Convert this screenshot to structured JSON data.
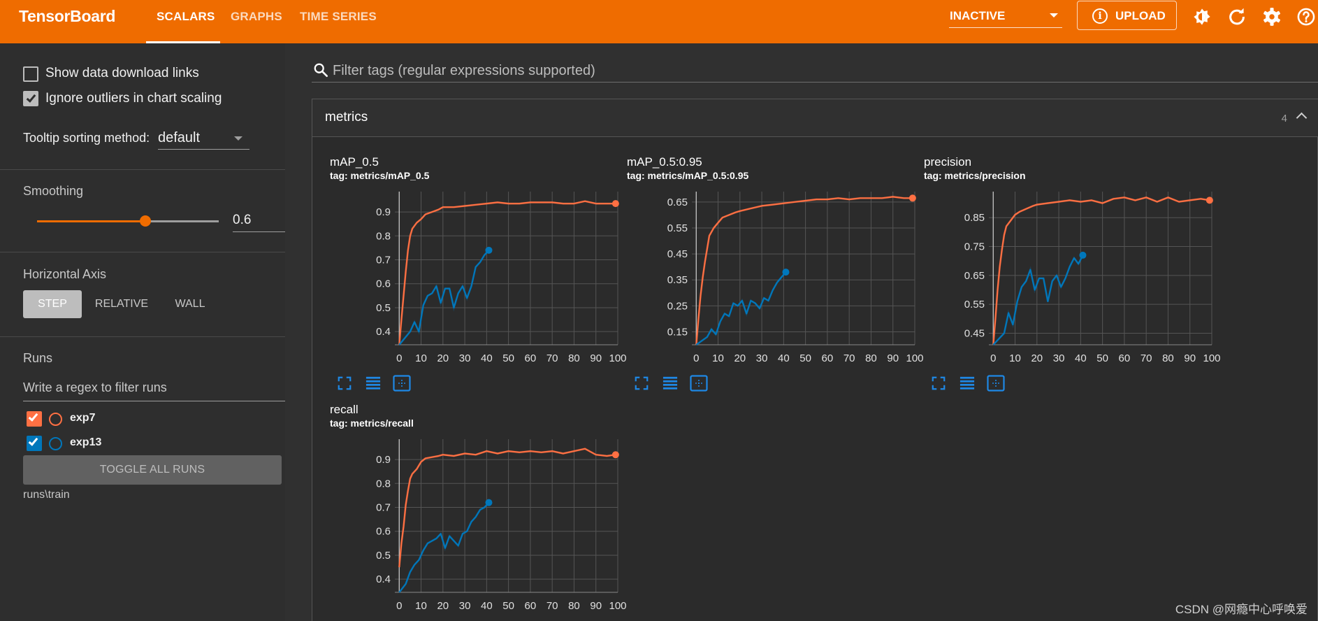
{
  "app": {
    "brand": "TensorBoard",
    "tabs": [
      {
        "label": "SCALARS",
        "active": true
      },
      {
        "label": "GRAPHS",
        "active": false
      },
      {
        "label": "TIME SERIES",
        "active": false
      }
    ],
    "status_select": "INACTIVE",
    "upload_label": "UPLOAD",
    "toolbar_icons": [
      "brightness-icon",
      "refresh-icon",
      "settings-icon",
      "help-icon"
    ],
    "accent_color": "#ef6c00"
  },
  "sidebar": {
    "show_download_links": {
      "label": "Show data download links",
      "checked": false
    },
    "ignore_outliers": {
      "label": "Ignore outliers in chart scaling",
      "checked": true
    },
    "tooltip_sorting": {
      "label": "Tooltip sorting method:",
      "value": "default"
    },
    "smoothing": {
      "label": "Smoothing",
      "value": "0.6",
      "fraction": 0.6
    },
    "horizontal_axis": {
      "label": "Horizontal Axis",
      "options": [
        "STEP",
        "RELATIVE",
        "WALL"
      ],
      "selected": "STEP"
    },
    "runs": {
      "label": "Runs",
      "filter_placeholder": "Write a regex to filter runs",
      "items": [
        {
          "name": "exp7",
          "color": "#ff7043",
          "checked": true
        },
        {
          "name": "exp13",
          "color": "#0077bb",
          "checked": true
        }
      ],
      "toggle_label": "TOGGLE ALL RUNS",
      "log_dir": "runs\\train"
    }
  },
  "main": {
    "filter_placeholder": "Filter tags (regular expressions supported)",
    "card": {
      "title": "metrics",
      "count": "4"
    }
  },
  "watermark": "CSDN @网瘾中心呼唤爱",
  "chart_data": [
    {
      "type": "line",
      "title": "mAP_0.5",
      "subtitle": "tag: metrics/mAP_0.5",
      "xlim": [
        -2,
        100
      ],
      "ylim": [
        0.345,
        0.985
      ],
      "xticks": [
        "0",
        "10",
        "20",
        "30",
        "40",
        "50",
        "60",
        "70",
        "80",
        "90",
        "100"
      ],
      "yticks": [
        "0.4",
        "0.5",
        "0.6",
        "0.7",
        "0.8",
        "0.9"
      ],
      "series": [
        {
          "name": "exp7",
          "color": "#ff7043",
          "x": [
            0,
            1,
            2,
            3,
            4,
            5,
            6,
            8,
            10,
            12,
            15,
            18,
            20,
            25,
            30,
            35,
            40,
            45,
            50,
            55,
            60,
            65,
            70,
            75,
            80,
            85,
            90,
            95,
            99
          ],
          "y": [
            0.345,
            0.45,
            0.55,
            0.65,
            0.74,
            0.8,
            0.83,
            0.855,
            0.87,
            0.89,
            0.9,
            0.91,
            0.92,
            0.92,
            0.925,
            0.93,
            0.935,
            0.94,
            0.935,
            0.935,
            0.94,
            0.94,
            0.94,
            0.935,
            0.935,
            0.945,
            0.935,
            0.935,
            0.935
          ]
        },
        {
          "name": "exp13",
          "color": "#0077bb",
          "x": [
            0,
            5,
            7,
            9,
            11,
            13,
            15,
            17,
            19,
            21,
            23,
            25,
            27,
            29,
            31,
            33,
            35,
            37,
            39,
            41
          ],
          "y": [
            0.345,
            0.4,
            0.44,
            0.4,
            0.51,
            0.55,
            0.56,
            0.59,
            0.52,
            0.58,
            0.58,
            0.5,
            0.56,
            0.59,
            0.54,
            0.59,
            0.67,
            0.69,
            0.72,
            0.74
          ]
        }
      ]
    },
    {
      "type": "line",
      "title": "mAP_0.5:0.95",
      "subtitle": "tag: metrics/mAP_0.5:0.95",
      "xlim": [
        -2,
        100
      ],
      "ylim": [
        0.1,
        0.69
      ],
      "xticks": [
        "0",
        "10",
        "20",
        "30",
        "40",
        "50",
        "60",
        "70",
        "80",
        "90",
        "100"
      ],
      "yticks": [
        "0.15",
        "0.25",
        "0.35",
        "0.45",
        "0.55",
        "0.65"
      ],
      "series": [
        {
          "name": "exp7",
          "color": "#ff7043",
          "x": [
            0,
            1,
            2,
            3,
            4,
            5,
            6,
            8,
            10,
            12,
            15,
            18,
            20,
            25,
            30,
            35,
            40,
            45,
            50,
            55,
            60,
            65,
            70,
            75,
            80,
            85,
            90,
            95,
            99
          ],
          "y": [
            0.1,
            0.2,
            0.29,
            0.36,
            0.42,
            0.47,
            0.52,
            0.55,
            0.57,
            0.59,
            0.6,
            0.61,
            0.615,
            0.625,
            0.635,
            0.64,
            0.645,
            0.65,
            0.655,
            0.66,
            0.66,
            0.665,
            0.66,
            0.665,
            0.665,
            0.665,
            0.67,
            0.665,
            0.665
          ]
        },
        {
          "name": "exp13",
          "color": "#0077bb",
          "x": [
            0,
            5,
            7,
            9,
            11,
            13,
            15,
            17,
            19,
            21,
            23,
            25,
            27,
            29,
            31,
            33,
            35,
            37,
            39,
            41
          ],
          "y": [
            0.1,
            0.13,
            0.16,
            0.14,
            0.19,
            0.22,
            0.21,
            0.26,
            0.25,
            0.27,
            0.22,
            0.27,
            0.26,
            0.24,
            0.28,
            0.27,
            0.31,
            0.34,
            0.36,
            0.38
          ]
        }
      ]
    },
    {
      "type": "line",
      "title": "precision",
      "subtitle": "tag: metrics/precision",
      "xlim": [
        -2,
        100
      ],
      "ylim": [
        0.41,
        0.94
      ],
      "xticks": [
        "0",
        "10",
        "20",
        "30",
        "40",
        "50",
        "60",
        "70",
        "80",
        "90",
        "100"
      ],
      "yticks": [
        "0.45",
        "0.55",
        "0.65",
        "0.75",
        "0.85"
      ],
      "series": [
        {
          "name": "exp7",
          "color": "#ff7043",
          "x": [
            0,
            1,
            2,
            3,
            4,
            5,
            6,
            8,
            10,
            12,
            15,
            18,
            20,
            25,
            30,
            35,
            40,
            45,
            50,
            55,
            60,
            65,
            70,
            75,
            80,
            85,
            90,
            95,
            99
          ],
          "y": [
            0.41,
            0.5,
            0.6,
            0.68,
            0.74,
            0.79,
            0.82,
            0.84,
            0.86,
            0.87,
            0.88,
            0.89,
            0.895,
            0.9,
            0.905,
            0.91,
            0.905,
            0.91,
            0.9,
            0.915,
            0.92,
            0.91,
            0.92,
            0.905,
            0.92,
            0.905,
            0.91,
            0.915,
            0.91
          ]
        },
        {
          "name": "exp13",
          "color": "#0077bb",
          "x": [
            0,
            5,
            7,
            9,
            11,
            13,
            15,
            17,
            19,
            21,
            23,
            25,
            27,
            29,
            31,
            33,
            35,
            37,
            39,
            41
          ],
          "y": [
            0.41,
            0.45,
            0.52,
            0.48,
            0.56,
            0.61,
            0.63,
            0.67,
            0.6,
            0.64,
            0.64,
            0.56,
            0.63,
            0.65,
            0.61,
            0.64,
            0.68,
            0.71,
            0.69,
            0.72
          ]
        }
      ]
    },
    {
      "type": "line",
      "title": "recall",
      "subtitle": "tag: metrics/recall",
      "xlim": [
        -2,
        100
      ],
      "ylim": [
        0.345,
        0.985
      ],
      "xticks": [
        "0",
        "10",
        "20",
        "30",
        "40",
        "50",
        "60",
        "70",
        "80",
        "90",
        "100"
      ],
      "yticks": [
        "0.4",
        "0.5",
        "0.6",
        "0.7",
        "0.8",
        "0.9"
      ],
      "series": [
        {
          "name": "exp7",
          "color": "#ff7043",
          "x": [
            0,
            1,
            2,
            3,
            4,
            5,
            6,
            8,
            10,
            12,
            15,
            18,
            20,
            25,
            30,
            35,
            40,
            45,
            50,
            55,
            60,
            65,
            70,
            75,
            80,
            85,
            90,
            95,
            99
          ],
          "y": [
            0.45,
            0.55,
            0.62,
            0.71,
            0.77,
            0.82,
            0.84,
            0.86,
            0.89,
            0.905,
            0.91,
            0.915,
            0.92,
            0.915,
            0.925,
            0.92,
            0.935,
            0.925,
            0.935,
            0.93,
            0.935,
            0.93,
            0.935,
            0.925,
            0.935,
            0.945,
            0.92,
            0.915,
            0.92
          ]
        },
        {
          "name": "exp13",
          "color": "#0077bb",
          "x": [
            0,
            3,
            5,
            7,
            9,
            11,
            13,
            15,
            17,
            19,
            21,
            23,
            25,
            27,
            29,
            31,
            33,
            35,
            37,
            39,
            41
          ],
          "y": [
            0.345,
            0.38,
            0.43,
            0.46,
            0.48,
            0.52,
            0.55,
            0.56,
            0.57,
            0.59,
            0.53,
            0.58,
            0.56,
            0.54,
            0.59,
            0.6,
            0.64,
            0.66,
            0.69,
            0.7,
            0.72
          ]
        }
      ]
    }
  ]
}
